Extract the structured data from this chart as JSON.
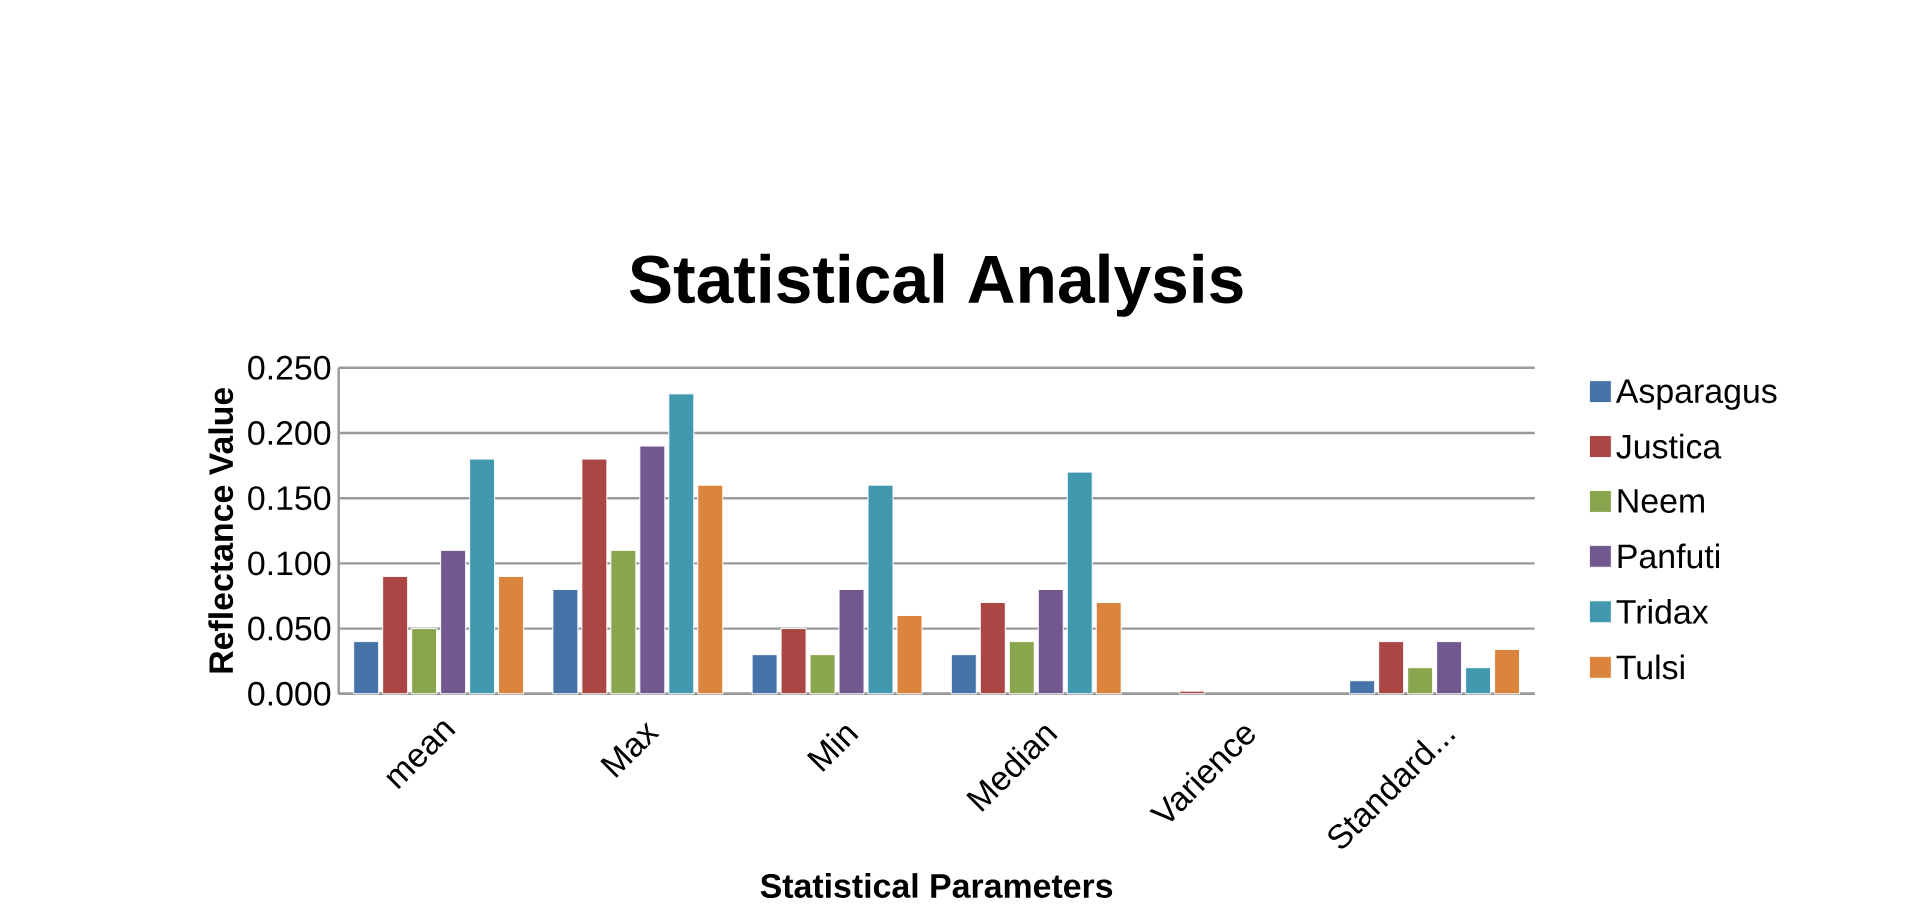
{
  "chart_data": {
    "type": "bar",
    "title": "Statistical Analysis",
    "xlabel": "Statistical Parameters",
    "ylabel": "Reflectance Value",
    "categories": [
      "mean",
      "Max",
      "Min",
      "Median",
      "Varience",
      "Standard..."
    ],
    "series": [
      {
        "name": "Asparagus",
        "color": "#4572a7",
        "values": [
          0.04,
          0.08,
          0.03,
          0.03,
          null,
          0.01
        ]
      },
      {
        "name": "Justica",
        "color": "#aa4643",
        "values": [
          0.09,
          0.18,
          0.05,
          0.07,
          0.002,
          0.04
        ]
      },
      {
        "name": "Neem",
        "color": "#89a54e",
        "values": [
          0.05,
          0.11,
          0.03,
          0.04,
          null,
          0.02
        ]
      },
      {
        "name": "Panfuti",
        "color": "#71588f",
        "values": [
          0.11,
          0.19,
          0.08,
          0.08,
          null,
          0.04
        ]
      },
      {
        "name": "Tridax",
        "color": "#4198af",
        "values": [
          0.18,
          0.23,
          0.16,
          0.17,
          null,
          0.02
        ]
      },
      {
        "name": "Tulsi",
        "color": "#db843d",
        "values": [
          0.09,
          0.16,
          0.06,
          0.07,
          null,
          0.034
        ]
      }
    ],
    "ylim": [
      0,
      0.25
    ],
    "yticks": [
      {
        "value": 0,
        "label": "0.000"
      },
      {
        "value": 0.05,
        "label": "0.050"
      },
      {
        "value": 0.1,
        "label": "0.100"
      },
      {
        "value": 0.15,
        "label": "0.150"
      },
      {
        "value": 0.2,
        "label": "0.200"
      },
      {
        "value": 0.25,
        "label": "0.250"
      }
    ],
    "grid": "y",
    "legend": "right"
  }
}
